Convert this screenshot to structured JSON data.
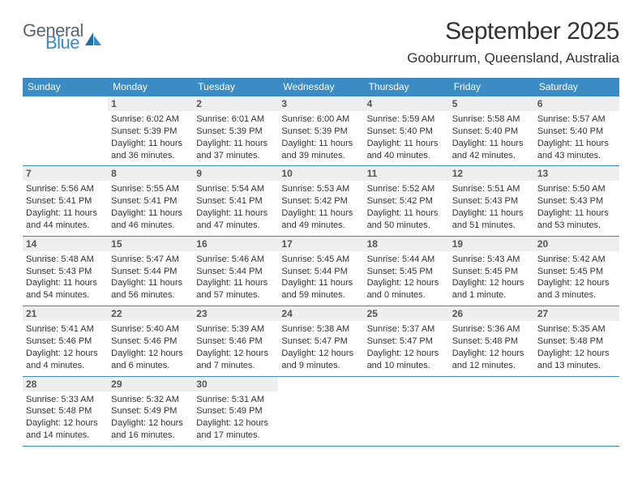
{
  "logo": {
    "text1": "General",
    "text2": "Blue"
  },
  "title": "September 2025",
  "location": "Gooburrum, Queensland, Australia",
  "colors": {
    "header_bg": "#3b8bc4",
    "header_text": "#ffffff",
    "daynum_bg": "#eeeeee",
    "daynum_text": "#555555",
    "body_text": "#333333",
    "rule": "#3b8bc4",
    "page_bg": "#ffffff"
  },
  "day_names": [
    "Sunday",
    "Monday",
    "Tuesday",
    "Wednesday",
    "Thursday",
    "Friday",
    "Saturday"
  ],
  "weeks": [
    [
      {
        "n": "",
        "sr": "",
        "ss": "",
        "dl": ""
      },
      {
        "n": "1",
        "sr": "Sunrise: 6:02 AM",
        "ss": "Sunset: 5:39 PM",
        "dl": "Daylight: 11 hours and 36 minutes."
      },
      {
        "n": "2",
        "sr": "Sunrise: 6:01 AM",
        "ss": "Sunset: 5:39 PM",
        "dl": "Daylight: 11 hours and 37 minutes."
      },
      {
        "n": "3",
        "sr": "Sunrise: 6:00 AM",
        "ss": "Sunset: 5:39 PM",
        "dl": "Daylight: 11 hours and 39 minutes."
      },
      {
        "n": "4",
        "sr": "Sunrise: 5:59 AM",
        "ss": "Sunset: 5:40 PM",
        "dl": "Daylight: 11 hours and 40 minutes."
      },
      {
        "n": "5",
        "sr": "Sunrise: 5:58 AM",
        "ss": "Sunset: 5:40 PM",
        "dl": "Daylight: 11 hours and 42 minutes."
      },
      {
        "n": "6",
        "sr": "Sunrise: 5:57 AM",
        "ss": "Sunset: 5:40 PM",
        "dl": "Daylight: 11 hours and 43 minutes."
      }
    ],
    [
      {
        "n": "7",
        "sr": "Sunrise: 5:56 AM",
        "ss": "Sunset: 5:41 PM",
        "dl": "Daylight: 11 hours and 44 minutes."
      },
      {
        "n": "8",
        "sr": "Sunrise: 5:55 AM",
        "ss": "Sunset: 5:41 PM",
        "dl": "Daylight: 11 hours and 46 minutes."
      },
      {
        "n": "9",
        "sr": "Sunrise: 5:54 AM",
        "ss": "Sunset: 5:41 PM",
        "dl": "Daylight: 11 hours and 47 minutes."
      },
      {
        "n": "10",
        "sr": "Sunrise: 5:53 AM",
        "ss": "Sunset: 5:42 PM",
        "dl": "Daylight: 11 hours and 49 minutes."
      },
      {
        "n": "11",
        "sr": "Sunrise: 5:52 AM",
        "ss": "Sunset: 5:42 PM",
        "dl": "Daylight: 11 hours and 50 minutes."
      },
      {
        "n": "12",
        "sr": "Sunrise: 5:51 AM",
        "ss": "Sunset: 5:43 PM",
        "dl": "Daylight: 11 hours and 51 minutes."
      },
      {
        "n": "13",
        "sr": "Sunrise: 5:50 AM",
        "ss": "Sunset: 5:43 PM",
        "dl": "Daylight: 11 hours and 53 minutes."
      }
    ],
    [
      {
        "n": "14",
        "sr": "Sunrise: 5:48 AM",
        "ss": "Sunset: 5:43 PM",
        "dl": "Daylight: 11 hours and 54 minutes."
      },
      {
        "n": "15",
        "sr": "Sunrise: 5:47 AM",
        "ss": "Sunset: 5:44 PM",
        "dl": "Daylight: 11 hours and 56 minutes."
      },
      {
        "n": "16",
        "sr": "Sunrise: 5:46 AM",
        "ss": "Sunset: 5:44 PM",
        "dl": "Daylight: 11 hours and 57 minutes."
      },
      {
        "n": "17",
        "sr": "Sunrise: 5:45 AM",
        "ss": "Sunset: 5:44 PM",
        "dl": "Daylight: 11 hours and 59 minutes."
      },
      {
        "n": "18",
        "sr": "Sunrise: 5:44 AM",
        "ss": "Sunset: 5:45 PM",
        "dl": "Daylight: 12 hours and 0 minutes."
      },
      {
        "n": "19",
        "sr": "Sunrise: 5:43 AM",
        "ss": "Sunset: 5:45 PM",
        "dl": "Daylight: 12 hours and 1 minute."
      },
      {
        "n": "20",
        "sr": "Sunrise: 5:42 AM",
        "ss": "Sunset: 5:45 PM",
        "dl": "Daylight: 12 hours and 3 minutes."
      }
    ],
    [
      {
        "n": "21",
        "sr": "Sunrise: 5:41 AM",
        "ss": "Sunset: 5:46 PM",
        "dl": "Daylight: 12 hours and 4 minutes."
      },
      {
        "n": "22",
        "sr": "Sunrise: 5:40 AM",
        "ss": "Sunset: 5:46 PM",
        "dl": "Daylight: 12 hours and 6 minutes."
      },
      {
        "n": "23",
        "sr": "Sunrise: 5:39 AM",
        "ss": "Sunset: 5:46 PM",
        "dl": "Daylight: 12 hours and 7 minutes."
      },
      {
        "n": "24",
        "sr": "Sunrise: 5:38 AM",
        "ss": "Sunset: 5:47 PM",
        "dl": "Daylight: 12 hours and 9 minutes."
      },
      {
        "n": "25",
        "sr": "Sunrise: 5:37 AM",
        "ss": "Sunset: 5:47 PM",
        "dl": "Daylight: 12 hours and 10 minutes."
      },
      {
        "n": "26",
        "sr": "Sunrise: 5:36 AM",
        "ss": "Sunset: 5:48 PM",
        "dl": "Daylight: 12 hours and 12 minutes."
      },
      {
        "n": "27",
        "sr": "Sunrise: 5:35 AM",
        "ss": "Sunset: 5:48 PM",
        "dl": "Daylight: 12 hours and 13 minutes."
      }
    ],
    [
      {
        "n": "28",
        "sr": "Sunrise: 5:33 AM",
        "ss": "Sunset: 5:48 PM",
        "dl": "Daylight: 12 hours and 14 minutes."
      },
      {
        "n": "29",
        "sr": "Sunrise: 5:32 AM",
        "ss": "Sunset: 5:49 PM",
        "dl": "Daylight: 12 hours and 16 minutes."
      },
      {
        "n": "30",
        "sr": "Sunrise: 5:31 AM",
        "ss": "Sunset: 5:49 PM",
        "dl": "Daylight: 12 hours and 17 minutes."
      },
      {
        "n": "",
        "sr": "",
        "ss": "",
        "dl": ""
      },
      {
        "n": "",
        "sr": "",
        "ss": "",
        "dl": ""
      },
      {
        "n": "",
        "sr": "",
        "ss": "",
        "dl": ""
      },
      {
        "n": "",
        "sr": "",
        "ss": "",
        "dl": ""
      }
    ]
  ]
}
